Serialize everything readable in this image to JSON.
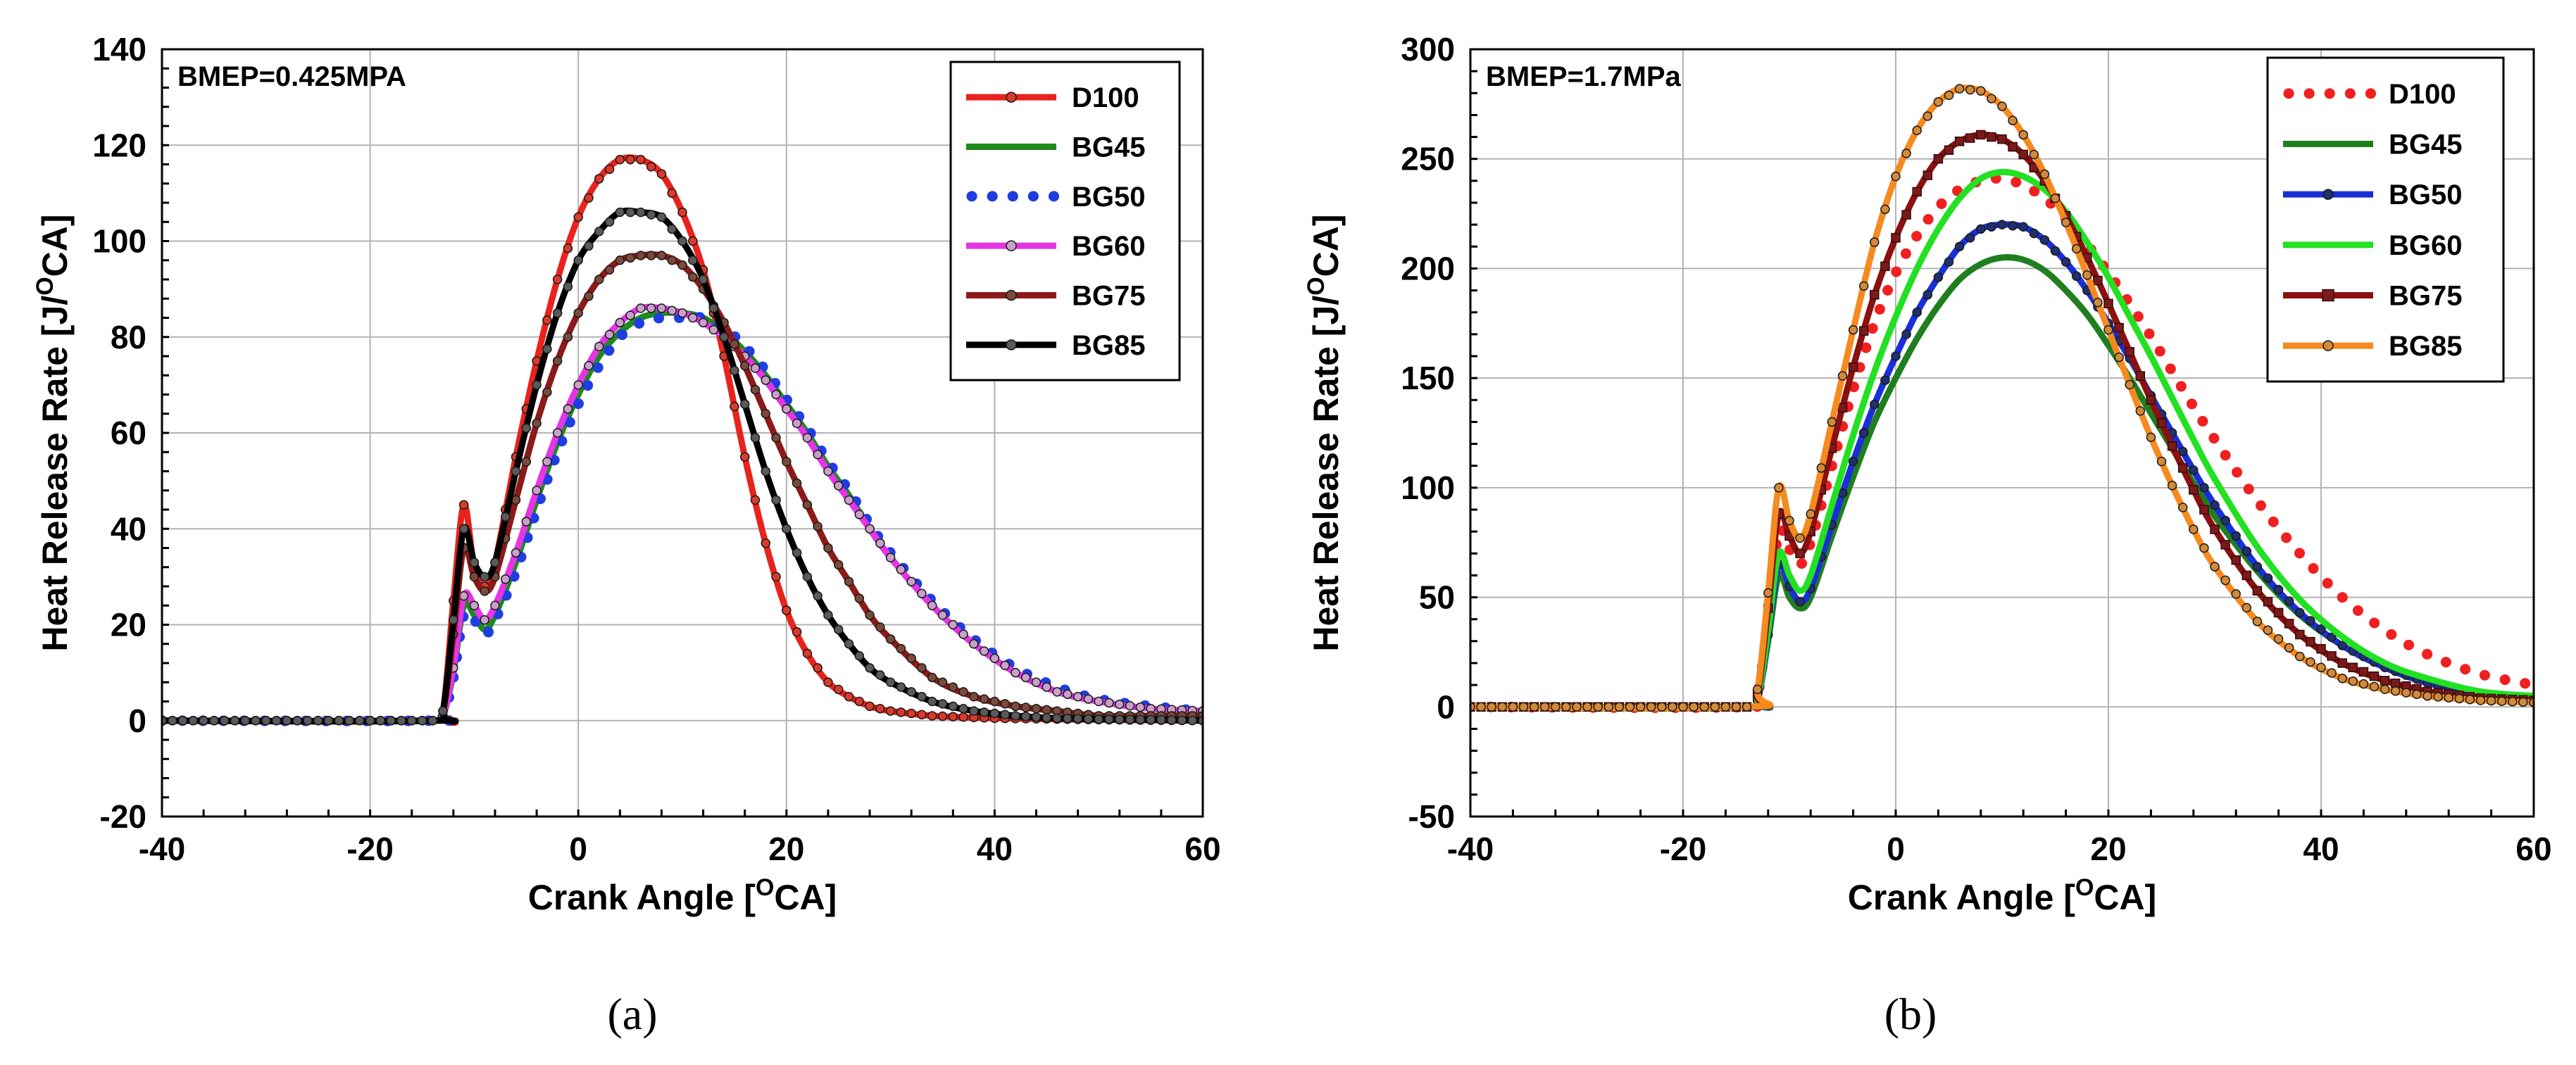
{
  "chart_data": [
    {
      "type": "line",
      "annotation": "BMEP=0.425MPA",
      "xlabel_pre": "Crank Angle [",
      "xlabel_sup": "O",
      "xlabel_post": "CA]",
      "ylabel_pre": "Heat Release Rate [J/",
      "ylabel_sup": "O",
      "ylabel_post": "CA]",
      "xlim": [
        -40,
        60
      ],
      "ylim": [
        -20,
        140
      ],
      "xticks": [
        -40,
        -20,
        0,
        20,
        40,
        60
      ],
      "yticks": [
        -20,
        0,
        20,
        40,
        60,
        80,
        100,
        120,
        140
      ],
      "grid": true,
      "legend_position": "top-right",
      "caption": "(a)",
      "series": [
        {
          "name": "D100",
          "color": "#e8231d",
          "style": "line-marker",
          "marker_fill": "#d93a2b",
          "x": [
            -40,
            -14,
            -13,
            -12,
            -11,
            -10,
            -9,
            -8,
            -6,
            -4,
            -2,
            0,
            2,
            4,
            6,
            8,
            10,
            12,
            14,
            16,
            18,
            20,
            22,
            24,
            26,
            28,
            30,
            34,
            40,
            50,
            60
          ],
          "y": [
            0,
            0,
            2,
            25,
            45,
            32,
            28,
            33,
            55,
            75,
            92,
            105,
            113,
            117,
            117,
            114,
            106,
            94,
            76,
            55,
            37,
            23,
            14,
            8,
            5,
            3,
            2,
            1,
            0.5,
            0.2,
            0
          ]
        },
        {
          "name": "BG45",
          "color": "#1f8a1f",
          "style": "line",
          "x": [
            -40,
            -14,
            -13,
            -12,
            -11,
            -10,
            -9,
            -8,
            -6,
            -4,
            -2,
            0,
            2,
            4,
            6,
            8,
            10,
            12,
            14,
            16,
            18,
            20,
            22,
            24,
            26,
            28,
            30,
            34,
            38,
            42,
            46,
            50,
            55,
            60
          ],
          "y": [
            0,
            0,
            1,
            10,
            24,
            22,
            19,
            22,
            33,
            46,
            58,
            68,
            76,
            81,
            84,
            85,
            85,
            84,
            81,
            77,
            72,
            66,
            60,
            53,
            47,
            40,
            34,
            24,
            16,
            10,
            6,
            4,
            2.5,
            2
          ]
        },
        {
          "name": "BG50",
          "color": "#1f3de0",
          "style": "dots",
          "x": [
            -40,
            -14,
            -13,
            -12,
            -11,
            -10,
            -9,
            -8,
            -6,
            -4,
            -2,
            0,
            2,
            4,
            6,
            8,
            10,
            12,
            14,
            16,
            18,
            20,
            22,
            24,
            26,
            28,
            30,
            34,
            38,
            42,
            46,
            50,
            55,
            60
          ],
          "y": [
            0,
            0,
            1,
            9,
            22,
            21,
            18,
            21,
            31,
            44,
            56,
            66,
            74,
            80,
            83,
            84,
            84,
            84,
            82,
            78,
            73,
            67,
            61,
            54,
            48,
            41,
            35,
            25,
            17,
            11,
            7,
            4.5,
            3,
            2
          ]
        },
        {
          "name": "BG60",
          "color": "#e535e5",
          "style": "line-marker",
          "marker_fill": "#c9a0c9",
          "x": [
            -40,
            -14,
            -13,
            -12,
            -11,
            -10,
            -9,
            -8,
            -6,
            -4,
            -2,
            0,
            2,
            4,
            6,
            8,
            10,
            12,
            14,
            16,
            18,
            20,
            22,
            24,
            26,
            28,
            30,
            34,
            38,
            42,
            46,
            50,
            55,
            60
          ],
          "y": [
            0,
            0,
            1,
            11,
            26,
            24,
            21,
            24,
            35,
            48,
            60,
            70,
            78,
            83,
            86,
            86,
            85,
            83,
            80,
            76,
            71,
            65,
            59,
            52,
            46,
            40,
            34,
            24,
            16,
            10,
            6,
            4,
            2.5,
            2
          ]
        },
        {
          "name": "BG75",
          "color": "#8b1a1a",
          "style": "line-marker",
          "marker_fill": "#7a4a3a",
          "x": [
            -40,
            -14,
            -13,
            -12,
            -11,
            -10,
            -9,
            -8,
            -6,
            -4,
            -2,
            0,
            2,
            4,
            6,
            8,
            10,
            12,
            14,
            16,
            18,
            20,
            22,
            24,
            26,
            28,
            30,
            34,
            38,
            42,
            46,
            50,
            55,
            60
          ],
          "y": [
            0,
            0,
            2,
            18,
            36,
            30,
            27,
            30,
            46,
            62,
            75,
            85,
            92,
            96,
            97,
            97,
            95,
            90,
            83,
            74,
            64,
            54,
            45,
            36,
            29,
            22,
            17,
            9,
            5,
            3,
            2,
            1,
            1,
            1
          ]
        },
        {
          "name": "BG85",
          "color": "#000000",
          "style": "line-marker",
          "marker_fill": "#5a5a5a",
          "x": [
            -40,
            -14,
            -13,
            -12,
            -11,
            -10,
            -9,
            -8,
            -6,
            -4,
            -2,
            0,
            2,
            4,
            6,
            8,
            10,
            12,
            14,
            16,
            18,
            20,
            22,
            24,
            26,
            28,
            30,
            34,
            38,
            42,
            46,
            50,
            55,
            60
          ],
          "y": [
            0,
            0,
            2,
            21,
            40,
            33,
            30,
            33,
            52,
            70,
            85,
            96,
            102,
            106,
            106,
            105,
            100,
            92,
            80,
            66,
            52,
            40,
            30,
            22,
            16,
            11,
            8,
            4,
            2,
            1,
            0.5,
            0.3,
            0.2,
            0
          ]
        }
      ]
    },
    {
      "type": "line",
      "annotation": "BMEP=1.7MPa",
      "xlabel_pre": "Crank Angle [",
      "xlabel_sup": "O",
      "xlabel_post": "CA]",
      "ylabel_pre": "Heat Release Rate [J/",
      "ylabel_sup": "O",
      "ylabel_post": "CA]",
      "xlim": [
        -40,
        60
      ],
      "ylim": [
        -50,
        300
      ],
      "xticks": [
        -40,
        -20,
        0,
        20,
        40,
        60
      ],
      "yticks": [
        -50,
        0,
        50,
        100,
        150,
        200,
        250,
        300
      ],
      "grid": true,
      "legend_position": "top-right",
      "caption": "(b)",
      "series": [
        {
          "name": "D100",
          "color": "#f02020",
          "style": "dots",
          "x": [
            -40,
            -14,
            -13,
            -12,
            -11,
            -10,
            -9,
            -8,
            -6,
            -4,
            -2,
            0,
            2,
            4,
            6,
            8,
            10,
            12,
            14,
            16,
            18,
            20,
            22,
            24,
            26,
            28,
            30,
            34,
            38,
            42,
            46,
            50,
            55,
            60
          ],
          "y": [
            0,
            0,
            5,
            40,
            80,
            72,
            65,
            75,
            110,
            145,
            175,
            198,
            215,
            228,
            236,
            240,
            241,
            238,
            232,
            223,
            211,
            198,
            184,
            169,
            153,
            137,
            122,
            94,
            70,
            50,
            35,
            24,
            15,
            10
          ]
        },
        {
          "name": "BG45",
          "color": "#1f7f1f",
          "style": "line",
          "x": [
            -40,
            -14,
            -13,
            -12,
            -11,
            -10,
            -9,
            -8,
            -6,
            -4,
            -2,
            0,
            2,
            4,
            6,
            8,
            10,
            12,
            14,
            16,
            18,
            20,
            22,
            24,
            26,
            28,
            30,
            34,
            38,
            42,
            46,
            50,
            55,
            60
          ],
          "y": [
            0,
            0,
            3,
            30,
            60,
            50,
            45,
            50,
            78,
            105,
            130,
            150,
            168,
            183,
            195,
            202,
            205,
            204,
            199,
            190,
            179,
            165,
            150,
            134,
            118,
            102,
            87,
            62,
            42,
            28,
            18,
            11,
            6,
            4
          ]
        },
        {
          "name": "BG50",
          "color": "#1a2fd6",
          "style": "line-marker",
          "marker_fill": "#203070",
          "x": [
            -40,
            -14,
            -13,
            -12,
            -11,
            -10,
            -9,
            -8,
            -6,
            -4,
            -2,
            0,
            2,
            4,
            6,
            8,
            10,
            12,
            14,
            16,
            18,
            20,
            22,
            24,
            26,
            28,
            30,
            34,
            38,
            42,
            46,
            50,
            55,
            60
          ],
          "y": [
            0,
            0,
            3,
            33,
            65,
            55,
            48,
            54,
            83,
            112,
            138,
            160,
            180,
            196,
            210,
            218,
            220,
            219,
            213,
            203,
            190,
            175,
            159,
            142,
            125,
            108,
            92,
            64,
            43,
            28,
            18,
            11,
            6,
            4
          ]
        },
        {
          "name": "BG60",
          "color": "#22e022",
          "style": "line",
          "x": [
            -40,
            -14,
            -13,
            -12,
            -11,
            -10,
            -9,
            -8,
            -6,
            -4,
            -2,
            0,
            2,
            4,
            6,
            8,
            10,
            12,
            14,
            16,
            18,
            20,
            22,
            24,
            26,
            28,
            30,
            34,
            38,
            42,
            46,
            50,
            55,
            60
          ],
          "y": [
            0,
            0,
            4,
            35,
            70,
            60,
            53,
            60,
            92,
            124,
            153,
            178,
            200,
            218,
            232,
            241,
            244,
            242,
            236,
            226,
            212,
            196,
            178,
            160,
            141,
            122,
            104,
            73,
            49,
            32,
            20,
            13,
            7,
            5
          ]
        },
        {
          "name": "BG75",
          "color": "#8b1010",
          "style": "line-square",
          "marker_fill": "#7a1a1a",
          "x": [
            -40,
            -14,
            -13,
            -12,
            -11,
            -10,
            -9,
            -8,
            -6,
            -4,
            -2,
            0,
            2,
            4,
            6,
            8,
            10,
            12,
            14,
            16,
            18,
            20,
            22,
            24,
            26,
            28,
            30,
            34,
            38,
            42,
            46,
            50,
            55,
            60
          ],
          "y": [
            0,
            0,
            6,
            45,
            88,
            78,
            70,
            80,
            118,
            155,
            188,
            214,
            235,
            250,
            258,
            261,
            259,
            252,
            240,
            224,
            205,
            184,
            162,
            140,
            119,
            99,
            81,
            53,
            33,
            20,
            12,
            7,
            4,
            3
          ]
        },
        {
          "name": "BG85",
          "color": "#f58a1f",
          "style": "line-marker",
          "marker_fill": "#d28a3a",
          "x": [
            -40,
            -14,
            -13,
            -12,
            -11,
            -10,
            -9,
            -8,
            -6,
            -4,
            -2,
            0,
            2,
            4,
            6,
            8,
            10,
            12,
            14,
            16,
            18,
            20,
            22,
            24,
            26,
            28,
            30,
            34,
            38,
            42,
            46,
            50,
            55,
            60
          ],
          "y": [
            0,
            0,
            8,
            52,
            100,
            85,
            77,
            88,
            130,
            172,
            212,
            242,
            263,
            276,
            282,
            281,
            274,
            261,
            243,
            221,
            197,
            172,
            147,
            123,
            101,
            81,
            64,
            39,
            23,
            13,
            8,
            5,
            3,
            2
          ]
        }
      ]
    }
  ]
}
